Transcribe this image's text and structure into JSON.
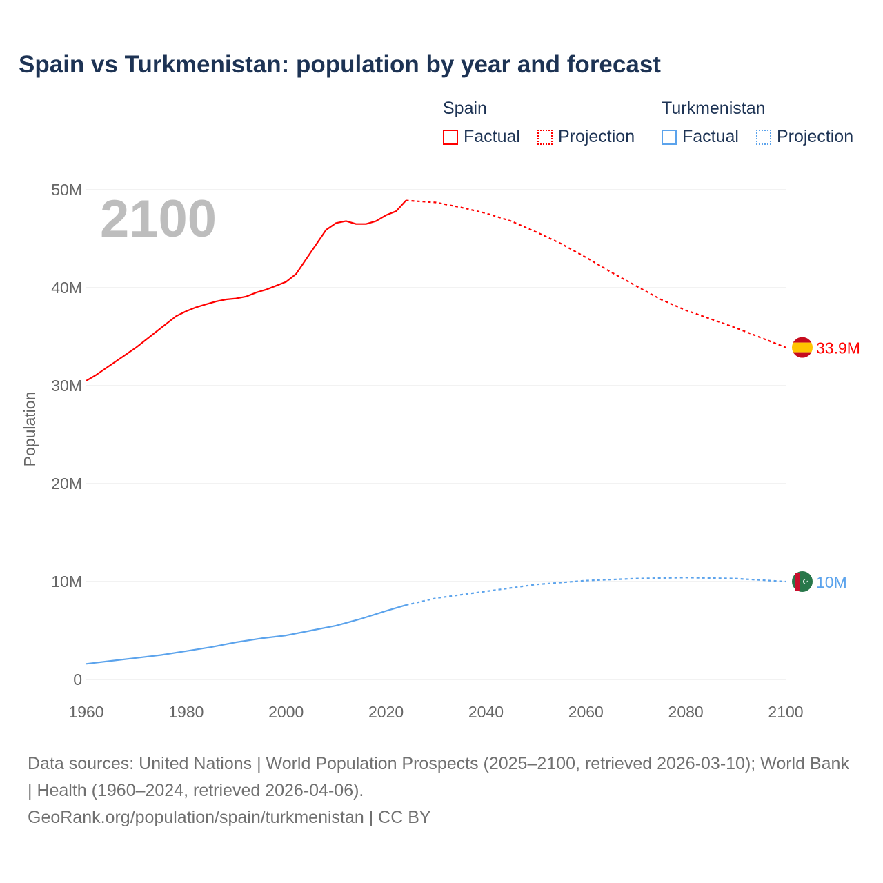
{
  "chart_data": {
    "type": "line",
    "title": "Spain vs Turkmenistan: population by year and forecast",
    "ylabel": "Population",
    "xlabel": "",
    "xlim": [
      1960,
      2100
    ],
    "ylim": [
      0,
      50000000
    ],
    "x_ticks": [
      "1960",
      "1980",
      "2000",
      "2020",
      "2040",
      "2060",
      "2080",
      "2100"
    ],
    "y_ticks": [
      {
        "v": 0,
        "label": "0"
      },
      {
        "v": 10000000,
        "label": "10M"
      },
      {
        "v": 20000000,
        "label": "20M"
      },
      {
        "v": 30000000,
        "label": "30M"
      },
      {
        "v": 40000000,
        "label": "40M"
      },
      {
        "v": 50000000,
        "label": "50M"
      }
    ],
    "grid": true,
    "current_year_label": "2100",
    "legend": {
      "placement": "top-right",
      "groups": [
        {
          "name": "Spain",
          "factual": "Factual",
          "projection": "Projection"
        },
        {
          "name": "Turkmenistan",
          "factual": "Factual",
          "projection": "Projection"
        }
      ]
    },
    "series": [
      {
        "name": "Spain",
        "color": "#ff0000",
        "end_label": "33.9M",
        "flag": "spain-flag",
        "factual": [
          [
            1960,
            30.5
          ],
          [
            1962,
            31.1
          ],
          [
            1964,
            31.8
          ],
          [
            1966,
            32.5
          ],
          [
            1968,
            33.2
          ],
          [
            1970,
            33.9
          ],
          [
            1972,
            34.7
          ],
          [
            1974,
            35.5
          ],
          [
            1976,
            36.3
          ],
          [
            1978,
            37.1
          ],
          [
            1980,
            37.6
          ],
          [
            1982,
            38.0
          ],
          [
            1984,
            38.3
          ],
          [
            1986,
            38.6
          ],
          [
            1988,
            38.8
          ],
          [
            1990,
            38.9
          ],
          [
            1992,
            39.1
          ],
          [
            1994,
            39.5
          ],
          [
            1996,
            39.8
          ],
          [
            1998,
            40.2
          ],
          [
            2000,
            40.6
          ],
          [
            2002,
            41.4
          ],
          [
            2004,
            42.9
          ],
          [
            2006,
            44.4
          ],
          [
            2008,
            45.9
          ],
          [
            2010,
            46.6
          ],
          [
            2012,
            46.8
          ],
          [
            2014,
            46.5
          ],
          [
            2016,
            46.5
          ],
          [
            2018,
            46.8
          ],
          [
            2020,
            47.4
          ],
          [
            2022,
            47.8
          ],
          [
            2024,
            48.9
          ]
        ],
        "projection": [
          [
            2024,
            48.9
          ],
          [
            2030,
            48.7
          ],
          [
            2035,
            48.2
          ],
          [
            2040,
            47.6
          ],
          [
            2045,
            46.8
          ],
          [
            2050,
            45.7
          ],
          [
            2055,
            44.5
          ],
          [
            2060,
            43.1
          ],
          [
            2065,
            41.6
          ],
          [
            2070,
            40.2
          ],
          [
            2075,
            38.8
          ],
          [
            2080,
            37.7
          ],
          [
            2085,
            36.8
          ],
          [
            2090,
            35.9
          ],
          [
            2095,
            34.9
          ],
          [
            2100,
            33.9
          ]
        ]
      },
      {
        "name": "Turkmenistan",
        "color": "#5ba3ec",
        "end_label": "10M",
        "flag": "turkmenistan-flag",
        "factual": [
          [
            1960,
            1.6
          ],
          [
            1965,
            1.9
          ],
          [
            1970,
            2.2
          ],
          [
            1975,
            2.5
          ],
          [
            1980,
            2.9
          ],
          [
            1985,
            3.3
          ],
          [
            1990,
            3.8
          ],
          [
            1995,
            4.2
          ],
          [
            2000,
            4.5
          ],
          [
            2005,
            5.0
          ],
          [
            2010,
            5.5
          ],
          [
            2015,
            6.2
          ],
          [
            2020,
            7.0
          ],
          [
            2024,
            7.6
          ]
        ],
        "projection": [
          [
            2024,
            7.6
          ],
          [
            2030,
            8.3
          ],
          [
            2040,
            9.0
          ],
          [
            2050,
            9.7
          ],
          [
            2060,
            10.1
          ],
          [
            2070,
            10.3
          ],
          [
            2080,
            10.4
          ],
          [
            2090,
            10.3
          ],
          [
            2100,
            10.0
          ]
        ]
      }
    ],
    "value_unit": "millions"
  },
  "footer": {
    "sources": "Data sources: United Nations | World Population Prospects (2025–2100, retrieved 2026-03-10); World Bank | Health (1960–2024, retrieved 2026-04-06).",
    "credit": "GeoRank.org/population/spain/turkmenistan | CC BY"
  }
}
